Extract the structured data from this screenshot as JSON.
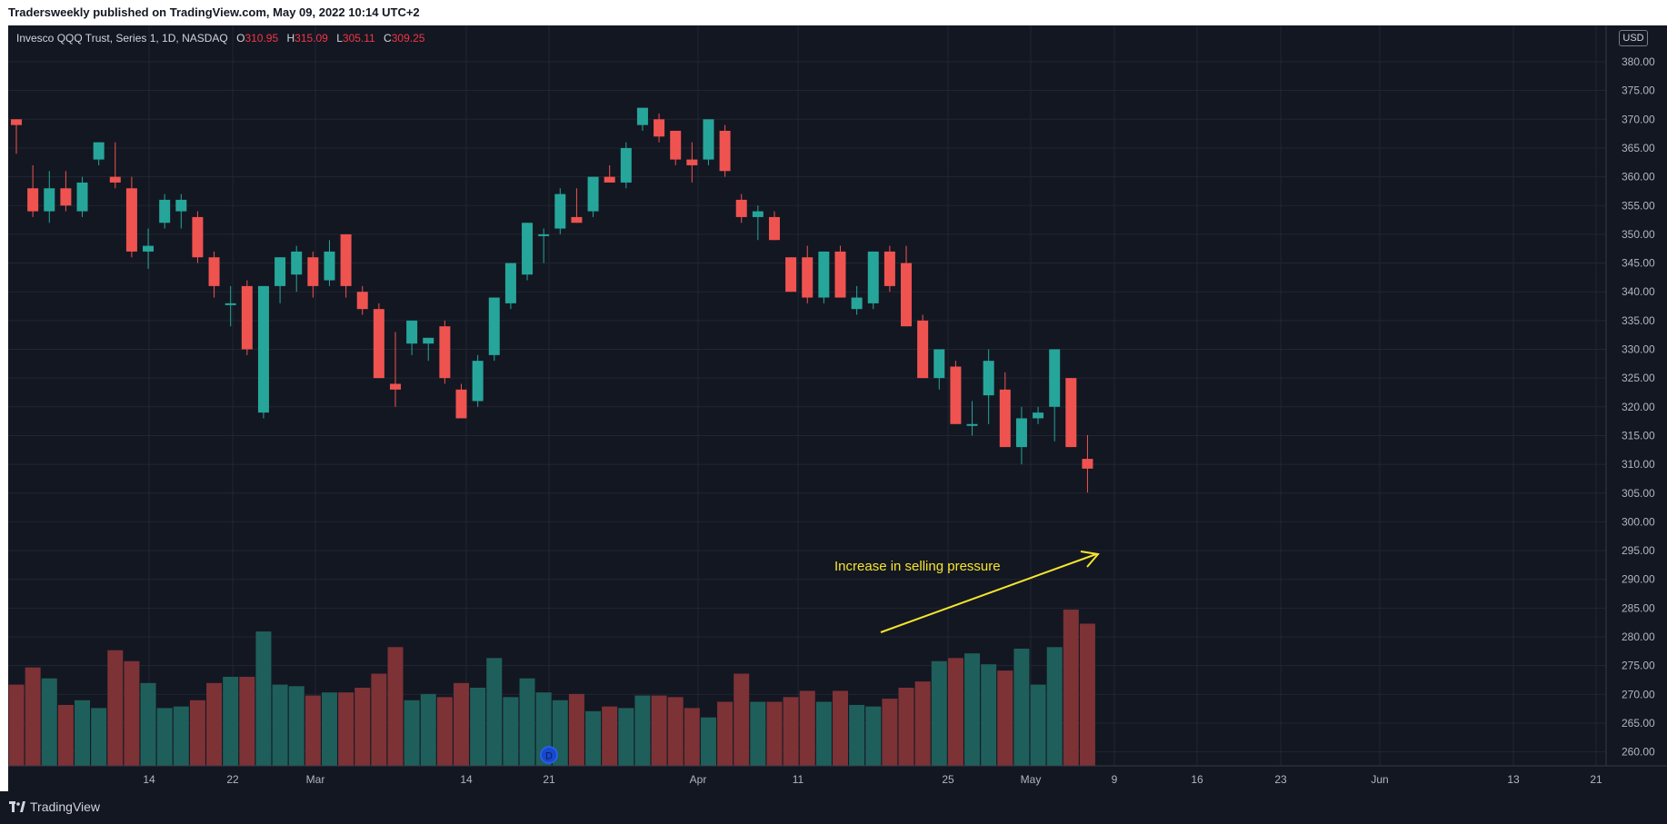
{
  "header": {
    "published": "Tradersweekly published on TradingView.com, May 09, 2022 10:14 UTC+2"
  },
  "legend": {
    "symbol": "Invesco QQQ Trust, Series 1, 1D, NASDAQ",
    "o_label": "O",
    "o": "310.95",
    "h_label": "H",
    "h": "315.09",
    "l_label": "L",
    "l": "305.11",
    "c_label": "C",
    "c": "309.25"
  },
  "currency": "USD",
  "footer": {
    "brand": "TradingView"
  },
  "annotation": {
    "text": "Increase in selling pressure"
  },
  "event_marker": {
    "letter": "D"
  },
  "colors": {
    "up": "#26a69a",
    "down": "#ef5350",
    "vol_up": "#1f5f5b",
    "vol_down": "#7d3236",
    "annotation": "#f7e52d"
  },
  "chart_data": {
    "type": "candlestick",
    "y_ticks": [
      "380.00",
      "375.00",
      "370.00",
      "365.00",
      "360.00",
      "355.00",
      "350.00",
      "345.00",
      "340.00",
      "335.00",
      "330.00",
      "325.00",
      "320.00",
      "315.00",
      "310.00",
      "305.00",
      "300.00",
      "295.00",
      "290.00",
      "285.00",
      "280.00",
      "275.00",
      "270.00",
      "265.00",
      "260.00"
    ],
    "x_ticks": [
      "14",
      "22",
      "Mar",
      "14",
      "21",
      "Apr",
      "11",
      "25",
      "May",
      "9",
      "16",
      "23",
      "Jun",
      "13",
      "21"
    ],
    "ylim": [
      257,
      385
    ],
    "grid": true,
    "candles": [
      {
        "o": 370,
        "h": 370,
        "l": 364,
        "c": 369
      },
      {
        "o": 358,
        "h": 362,
        "l": 353,
        "c": 354
      },
      {
        "o": 354,
        "h": 361,
        "l": 352,
        "c": 358
      },
      {
        "o": 358,
        "h": 361,
        "l": 354,
        "c": 355
      },
      {
        "o": 354,
        "h": 360,
        "l": 353,
        "c": 359
      },
      {
        "o": 363,
        "h": 366,
        "l": 362,
        "c": 366
      },
      {
        "o": 360,
        "h": 366,
        "l": 358,
        "c": 359
      },
      {
        "o": 358,
        "h": 360,
        "l": 346,
        "c": 347
      },
      {
        "o": 347,
        "h": 351,
        "l": 344,
        "c": 348
      },
      {
        "o": 352,
        "h": 357,
        "l": 351,
        "c": 356
      },
      {
        "o": 354,
        "h": 357,
        "l": 351,
        "c": 356
      },
      {
        "o": 353,
        "h": 354,
        "l": 345,
        "c": 346
      },
      {
        "o": 346,
        "h": 347,
        "l": 339,
        "c": 341
      },
      {
        "o": 338,
        "h": 341,
        "l": 334,
        "c": 338
      },
      {
        "o": 341,
        "h": 342,
        "l": 329,
        "c": 330
      },
      {
        "o": 319,
        "h": 341,
        "l": 318,
        "c": 341
      },
      {
        "o": 341,
        "h": 346,
        "l": 338,
        "c": 346
      },
      {
        "o": 343,
        "h": 348,
        "l": 340,
        "c": 347
      },
      {
        "o": 346,
        "h": 347,
        "l": 339,
        "c": 341
      },
      {
        "o": 342,
        "h": 349,
        "l": 341,
        "c": 347
      },
      {
        "o": 350,
        "h": 350,
        "l": 339,
        "c": 341
      },
      {
        "o": 340,
        "h": 341,
        "l": 336,
        "c": 337
      },
      {
        "o": 337,
        "h": 338,
        "l": 325,
        "c": 325
      },
      {
        "o": 324,
        "h": 333,
        "l": 320,
        "c": 323
      },
      {
        "o": 331,
        "h": 335,
        "l": 329,
        "c": 335
      },
      {
        "o": 331,
        "h": 332,
        "l": 328,
        "c": 332
      },
      {
        "o": 334,
        "h": 335,
        "l": 324,
        "c": 325
      },
      {
        "o": 323,
        "h": 324,
        "l": 318,
        "c": 318
      },
      {
        "o": 321,
        "h": 329,
        "l": 320,
        "c": 328
      },
      {
        "o": 329,
        "h": 339,
        "l": 328,
        "c": 339
      },
      {
        "o": 338,
        "h": 345,
        "l": 337,
        "c": 345
      },
      {
        "o": 343,
        "h": 352,
        "l": 342,
        "c": 352
      },
      {
        "o": 350,
        "h": 351,
        "l": 345,
        "c": 350
      },
      {
        "o": 351,
        "h": 358,
        "l": 350,
        "c": 357
      },
      {
        "o": 353,
        "h": 358,
        "l": 352,
        "c": 352
      },
      {
        "o": 354,
        "h": 360,
        "l": 353,
        "c": 360
      },
      {
        "o": 360,
        "h": 362,
        "l": 359,
        "c": 359
      },
      {
        "o": 359,
        "h": 366,
        "l": 358,
        "c": 365
      },
      {
        "o": 369,
        "h": 372,
        "l": 368,
        "c": 372
      },
      {
        "o": 370,
        "h": 371,
        "l": 366,
        "c": 367
      },
      {
        "o": 368,
        "h": 368,
        "l": 362,
        "c": 363
      },
      {
        "o": 363,
        "h": 366,
        "l": 359,
        "c": 362
      },
      {
        "o": 363,
        "h": 370,
        "l": 362,
        "c": 370
      },
      {
        "o": 368,
        "h": 369,
        "l": 360,
        "c": 361
      },
      {
        "o": 356,
        "h": 357,
        "l": 352,
        "c": 353
      },
      {
        "o": 353,
        "h": 355,
        "l": 349,
        "c": 354
      },
      {
        "o": 353,
        "h": 354,
        "l": 349,
        "c": 349
      },
      {
        "o": 346,
        "h": 346,
        "l": 340,
        "c": 340
      },
      {
        "o": 346,
        "h": 348,
        "l": 338,
        "c": 339
      },
      {
        "o": 339,
        "h": 347,
        "l": 338,
        "c": 347
      },
      {
        "o": 347,
        "h": 348,
        "l": 339,
        "c": 339
      },
      {
        "o": 337,
        "h": 341,
        "l": 336,
        "c": 339
      },
      {
        "o": 338,
        "h": 347,
        "l": 337,
        "c": 347
      },
      {
        "o": 347,
        "h": 348,
        "l": 340,
        "c": 341
      },
      {
        "o": 345,
        "h": 348,
        "l": 334,
        "c": 334
      },
      {
        "o": 335,
        "h": 336,
        "l": 325,
        "c": 325
      },
      {
        "o": 325,
        "h": 330,
        "l": 323,
        "c": 330
      },
      {
        "o": 327,
        "h": 328,
        "l": 317,
        "c": 317
      },
      {
        "o": 317,
        "h": 321,
        "l": 315,
        "c": 317
      },
      {
        "o": 322,
        "h": 330,
        "l": 317,
        "c": 328
      },
      {
        "o": 323,
        "h": 326,
        "l": 313,
        "c": 313
      },
      {
        "o": 313,
        "h": 320,
        "l": 310,
        "c": 318
      },
      {
        "o": 318,
        "h": 320,
        "l": 317,
        "c": 319
      },
      {
        "o": 320,
        "h": 330,
        "l": 314,
        "c": 330
      },
      {
        "o": 325,
        "h": 325,
        "l": 313,
        "c": 313
      },
      {
        "o": 310.95,
        "h": 315.09,
        "l": 305.11,
        "c": 309.25
      }
    ],
    "volume_relative": [
      0.52,
      0.63,
      0.56,
      0.39,
      0.42,
      0.37,
      0.74,
      0.67,
      0.53,
      0.37,
      0.38,
      0.42,
      0.53,
      0.57,
      0.57,
      0.86,
      0.52,
      0.51,
      0.45,
      0.47,
      0.47,
      0.5,
      0.59,
      0.76,
      0.42,
      0.46,
      0.44,
      0.53,
      0.5,
      0.69,
      0.44,
      0.56,
      0.47,
      0.42,
      0.46,
      0.35,
      0.38,
      0.37,
      0.45,
      0.45,
      0.44,
      0.37,
      0.31,
      0.41,
      0.59,
      0.41,
      0.41,
      0.44,
      0.48,
      0.41,
      0.48,
      0.39,
      0.38,
      0.43,
      0.5,
      0.54,
      0.67,
      0.69,
      0.72,
      0.65,
      0.61,
      0.75,
      0.52,
      0.76,
      1.0,
      0.91
    ],
    "annotation": "Increase in selling pressure"
  }
}
